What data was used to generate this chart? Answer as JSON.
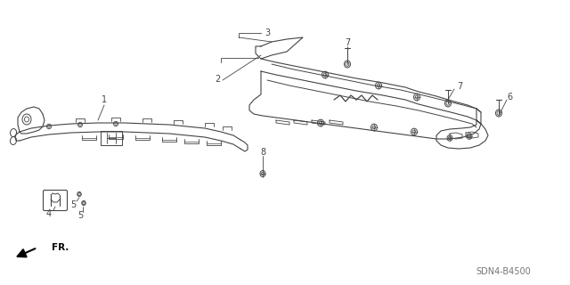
{
  "bg_color": "#ffffff",
  "line_color": "#444444",
  "part_number_text": "SDN4-B4500",
  "fr_label": "FR.",
  "figsize": [
    6.4,
    3.2
  ],
  "dpi": 100
}
